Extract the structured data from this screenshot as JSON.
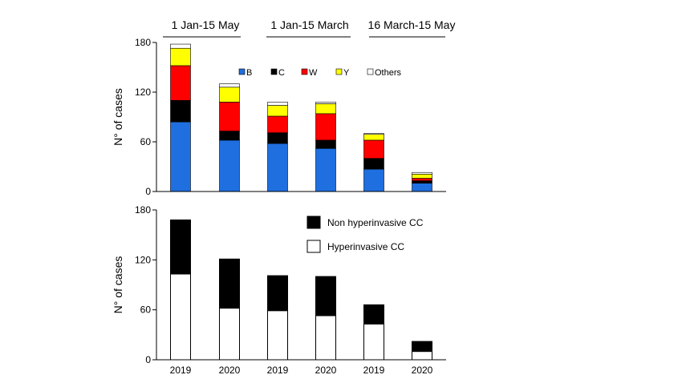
{
  "chart_data": [
    {
      "type": "bar",
      "stacked": true,
      "period_headers": [
        "1 Jan-15 May",
        "1 Jan-15 March",
        "16 March-15 May"
      ],
      "categories": [
        "2019",
        "2020",
        "2019",
        "2020",
        "2019",
        "2020"
      ],
      "ylabel": "N° of cases",
      "ylim": [
        0,
        180
      ],
      "yticks": [
        0,
        60,
        120,
        180
      ],
      "legend_position": "top-right",
      "grid": false,
      "series": [
        {
          "name": "B",
          "color": "#1f6fe0",
          "values": [
            84,
            62,
            58,
            52,
            27,
            10
          ]
        },
        {
          "name": "C",
          "color": "#000000",
          "values": [
            26,
            11,
            13,
            10,
            13,
            3
          ]
        },
        {
          "name": "W",
          "color": "#ff0000",
          "values": [
            42,
            35,
            20,
            32,
            22,
            3
          ]
        },
        {
          "name": "Y",
          "color": "#ffff00",
          "values": [
            21,
            18,
            13,
            12,
            7,
            5
          ]
        },
        {
          "name": "Others",
          "color": "#ffffff",
          "values": [
            5,
            4,
            4,
            2,
            1,
            2
          ]
        }
      ]
    },
    {
      "type": "bar",
      "stacked": true,
      "categories": [
        "2019",
        "2020",
        "2019",
        "2020",
        "2019",
        "2020"
      ],
      "ylabel": "N° of cases",
      "ylim": [
        0,
        180
      ],
      "yticks": [
        0,
        60,
        120,
        180
      ],
      "legend_position": "top-right",
      "grid": false,
      "series": [
        {
          "name": "Hyperinvasive CC",
          "color": "#ffffff",
          "values": [
            103,
            62,
            59,
            53,
            43,
            10
          ]
        },
        {
          "name": "Non hyperinvasive CC",
          "color": "#000000",
          "values": [
            65,
            59,
            42,
            47,
            23,
            12
          ]
        }
      ]
    }
  ]
}
